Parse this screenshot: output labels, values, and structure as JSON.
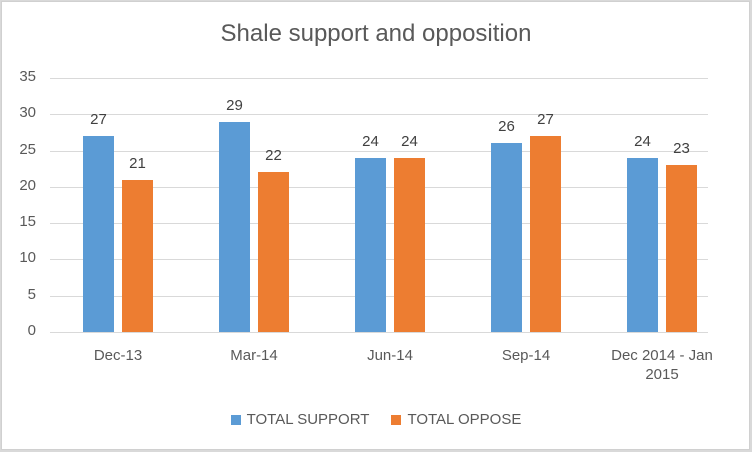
{
  "chart_data": {
    "type": "bar",
    "title": "Shale support and opposition",
    "categories": [
      "Dec-13",
      "Mar-14",
      "Jun-14",
      "Sep-14",
      "Dec 2014 -  Jan 2015"
    ],
    "series": [
      {
        "name": "TOTAL SUPPORT",
        "color": "#5b9bd5",
        "values": [
          27,
          29,
          24,
          26,
          24
        ]
      },
      {
        "name": "TOTAL OPPOSE",
        "color": "#ed7d31",
        "values": [
          21,
          22,
          24,
          27,
          23
        ]
      }
    ],
    "xlabel": "",
    "ylabel": "",
    "ylim": [
      0,
      35
    ],
    "yticks": [
      0,
      5,
      10,
      15,
      20,
      25,
      30,
      35
    ],
    "grid": true,
    "legend_position": "bottom",
    "data_labels": true
  },
  "category_lines": [
    [
      "Dec-13"
    ],
    [
      "Mar-14"
    ],
    [
      "Jun-14"
    ],
    [
      "Sep-14"
    ],
    [
      "Dec 2014 -  Jan",
      "2015"
    ]
  ]
}
